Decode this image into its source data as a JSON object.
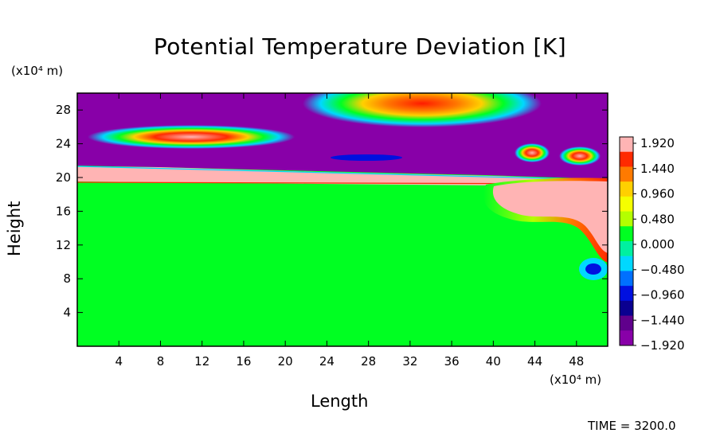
{
  "chart_data": {
    "type": "heatmap",
    "title": "Potential Temperature Deviation [K]",
    "xlabel": "Length",
    "ylabel": "Height",
    "x_unit": "(x10⁴ m)",
    "y_unit": "(x10⁴ m)",
    "xlim": [
      0,
      51
    ],
    "ylim": [
      0,
      30
    ],
    "x_ticks": [
      "4",
      "8",
      "12",
      "16",
      "20",
      "24",
      "28",
      "32",
      "36",
      "40",
      "44",
      "48"
    ],
    "y_ticks": [
      "4",
      "8",
      "12",
      "16",
      "20",
      "24",
      "28"
    ],
    "colorbar": {
      "labels": [
        "1.920",
        "1.440",
        "0.960",
        "0.480",
        "0.000",
        "−0.480",
        "−0.960",
        "−1.440",
        "−1.920"
      ],
      "range": [
        -1.92,
        1.92
      ],
      "colors": [
        "#ffb4b4",
        "#ff2a00",
        "#ff7a00",
        "#ffd000",
        "#f5ff00",
        "#b4ff00",
        "#00ff22",
        "#00f0a0",
        "#00d8ff",
        "#0070ff",
        "#0010e0",
        "#0a0090",
        "#60008c",
        "#8800a8"
      ]
    },
    "regions": [
      {
        "name": "lower layer",
        "value": 0.0
      },
      {
        "name": "stable layer",
        "value": 1.92
      },
      {
        "name": "upper layer",
        "value": -1.92
      },
      {
        "name": "warm anomaly near x=32",
        "value": 1.6
      },
      {
        "name": "warm anomaly near x=10",
        "value": 1.9
      },
      {
        "name": "warm plume near x=44-51",
        "value": 1.92
      }
    ],
    "time_label": "TIME = 3200.0",
    "grid": false,
    "legend_position": "right"
  }
}
